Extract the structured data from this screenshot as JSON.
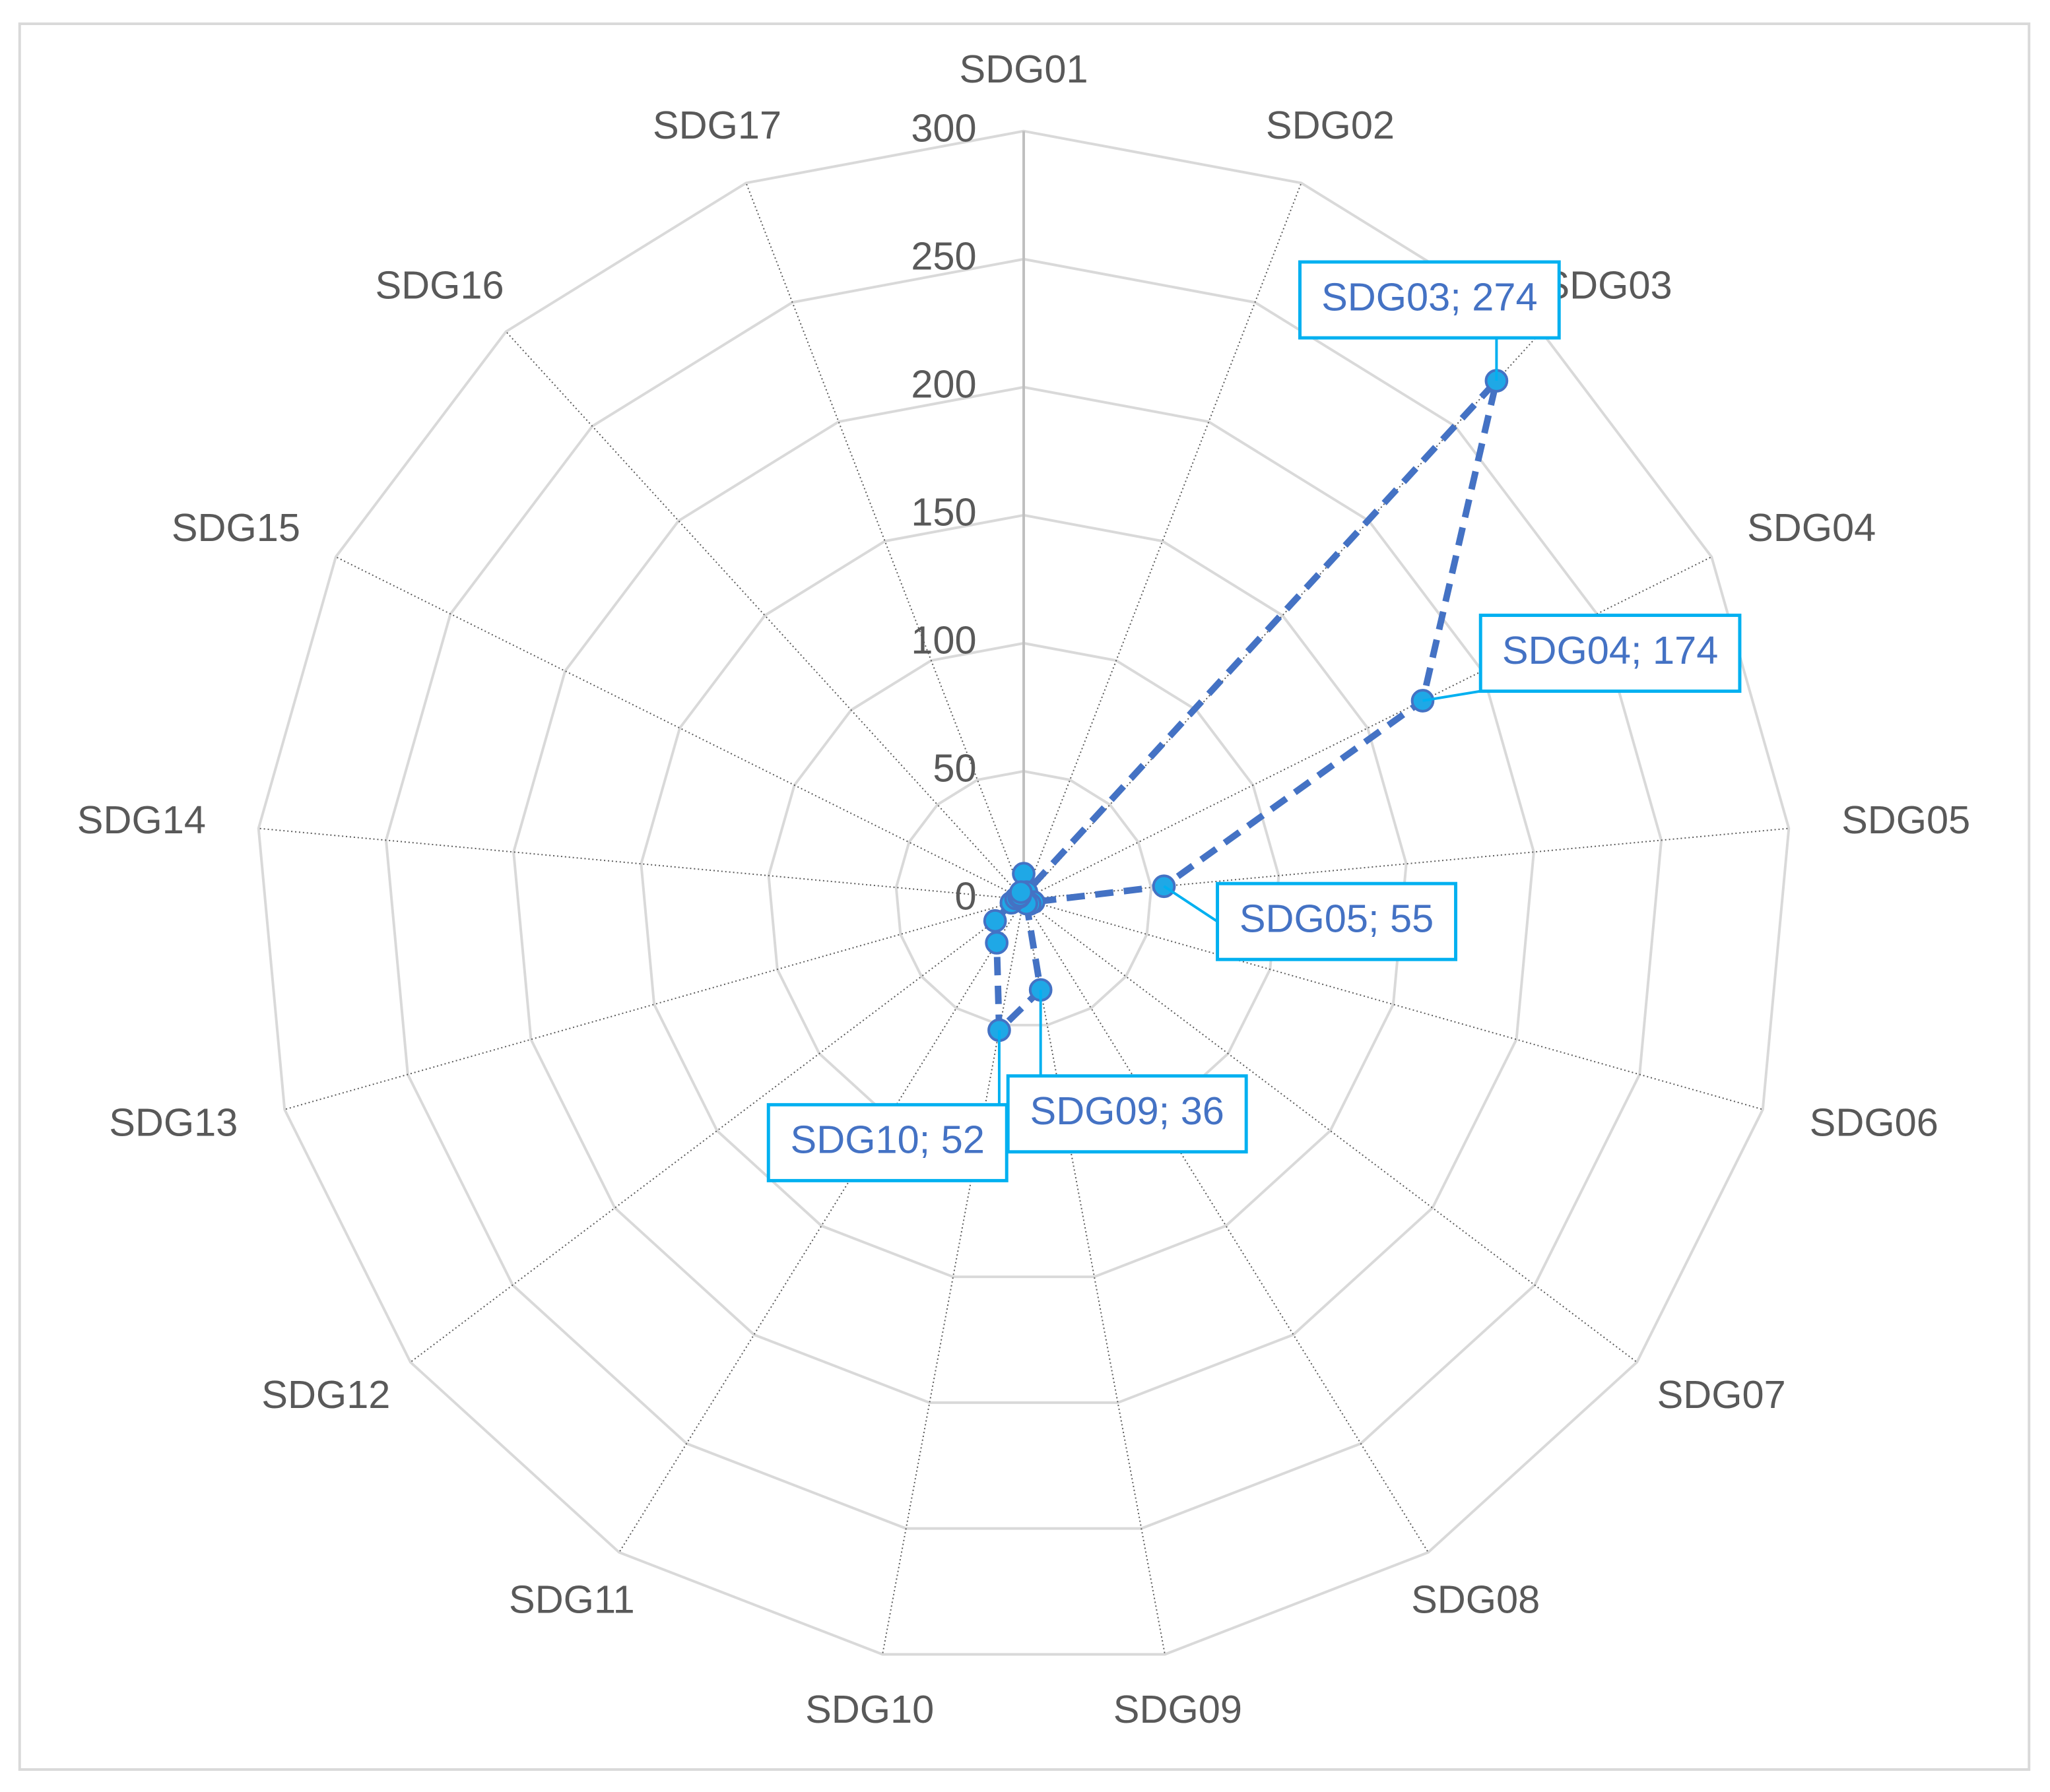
{
  "chart_data": {
    "type": "radar",
    "categories": [
      "SDG01",
      "SDG02",
      "SDG03",
      "SDG04",
      "SDG05",
      "SDG06",
      "SDG07",
      "SDG08",
      "SDG09",
      "SDG10",
      "SDG11",
      "SDG12",
      "SDG13",
      "SDG14",
      "SDG15",
      "SDG16",
      "SDG17"
    ],
    "values": [
      10,
      3,
      274,
      174,
      55,
      4,
      3,
      2,
      36,
      52,
      20,
      14,
      5,
      3,
      2,
      2,
      3
    ],
    "value_labels": [
      null,
      null,
      "SDG03; 274",
      "SDG04; 174",
      "SDG05; 55",
      null,
      null,
      null,
      "SDG09; 36",
      "SDG10; 52",
      null,
      null,
      null,
      null,
      null,
      null,
      null
    ],
    "color": "#4472c4",
    "marker_color": "#1fa8e6",
    "label_border_color": "#00b0f0",
    "ylim": [
      0,
      300
    ],
    "yticks": [
      0,
      50,
      100,
      150,
      200,
      250,
      300
    ],
    "grid": true
  }
}
